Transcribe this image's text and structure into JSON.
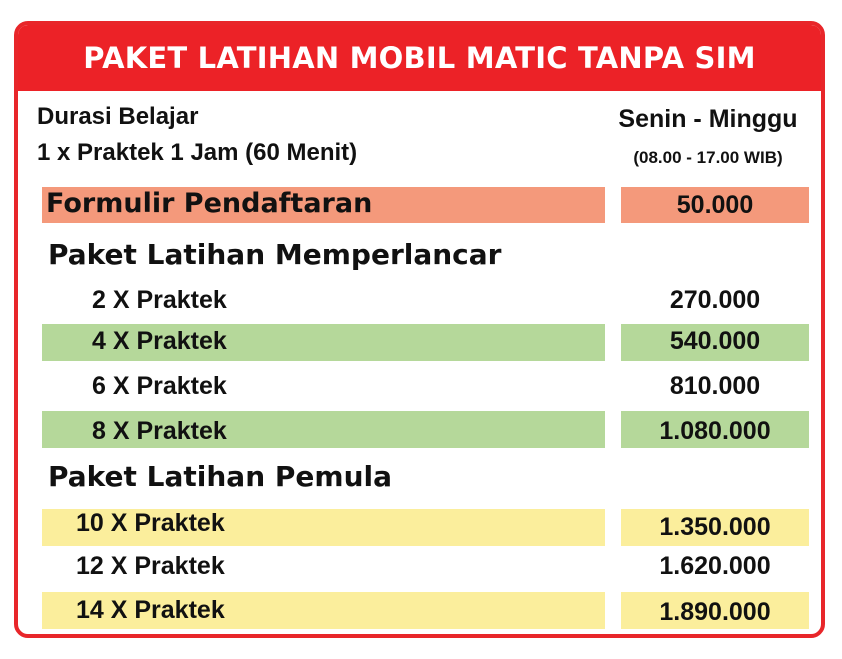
{
  "header": {
    "title": "PAKET LATIHAN MOBIL MATIC TANPA SIM"
  },
  "info": {
    "duration_label": "Durasi Belajar",
    "duration_detail": "1 x Praktek 1 Jam (60 Menit)",
    "days": "Senin - Minggu",
    "hours": "(08.00 - 17.00 WIB)"
  },
  "registration": {
    "label": "Formulir Pendaftaran",
    "price": "50.000"
  },
  "sections": [
    {
      "title": "Paket Latihan Memperlancar",
      "rows": [
        {
          "label": "2 X Praktek",
          "price": "270.000"
        },
        {
          "label": "4 X Praktek",
          "price": "540.000"
        },
        {
          "label": "6 X Praktek",
          "price": "810.000"
        },
        {
          "label": "8 X Praktek",
          "price": "1.080.000"
        }
      ]
    },
    {
      "title": "Paket Latihan Pemula",
      "rows": [
        {
          "label": "10 X Praktek",
          "price": "1.350.000"
        },
        {
          "label": "12 X Praktek",
          "price": "1.620.000"
        },
        {
          "label": "14 X Praktek",
          "price": "1.890.000"
        }
      ]
    }
  ],
  "colors": {
    "accent_red": "#ec2227",
    "registration_bg": "#f4997b",
    "memperlancar_bg": "#b5d89a",
    "pemula_bg": "#fbee9c"
  }
}
